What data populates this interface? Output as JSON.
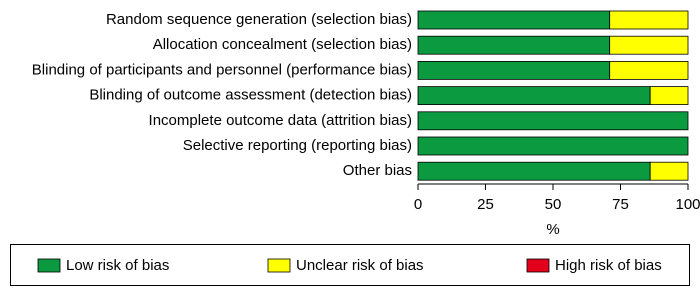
{
  "chart_data": {
    "type": "bar",
    "orientation": "horizontal",
    "stacked": true,
    "categories": [
      "Random sequence generation (selection bias)",
      "Allocation concealment (selection bias)",
      "Blinding of participants and personnel (performance bias)",
      "Blinding of outcome assessment (detection bias)",
      "Incomplete outcome data (attrition bias)",
      "Selective reporting (reporting bias)",
      "Other bias"
    ],
    "series": [
      {
        "name": "Low risk of bias",
        "color": "#0b9a40",
        "values": [
          71,
          71,
          71,
          86,
          100,
          100,
          86
        ]
      },
      {
        "name": "Unclear risk of bias",
        "color": "#ffff00",
        "values": [
          29,
          29,
          29,
          14,
          0,
          0,
          14
        ]
      },
      {
        "name": "High risk of bias",
        "color": "#e2001a",
        "values": [
          0,
          0,
          0,
          0,
          0,
          0,
          0
        ]
      }
    ],
    "x_label": "%",
    "xlim": [
      0,
      100
    ],
    "xticks": [
      0,
      25,
      50,
      75,
      100
    ],
    "legend": "bottom"
  }
}
